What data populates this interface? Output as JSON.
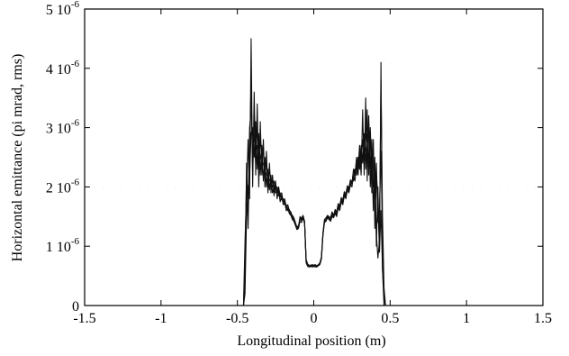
{
  "chart_data": {
    "type": "line",
    "xlabel": "Longitudinal position (m)",
    "ylabel": "Horizontal emittance (pi mrad, rms)",
    "xlim": [
      -1.5,
      1.5
    ],
    "ylim": [
      0,
      5e-06
    ],
    "grid": false,
    "legend": "none",
    "x_ticks": [
      {
        "value": -1.5,
        "label": "-1.5"
      },
      {
        "value": -1,
        "label": "-1"
      },
      {
        "value": -0.5,
        "label": "-0.5"
      },
      {
        "value": 0,
        "label": "0"
      },
      {
        "value": 0.5,
        "label": "0.5"
      },
      {
        "value": 1,
        "label": "1"
      },
      {
        "value": 1.5,
        "label": "1.5"
      }
    ],
    "y_ticks": [
      {
        "value": 0,
        "mantissa": "0",
        "exponent": ""
      },
      {
        "value": 1e-06,
        "mantissa": "1 10",
        "exponent": "-6"
      },
      {
        "value": 2e-06,
        "mantissa": "2 10",
        "exponent": "-6"
      },
      {
        "value": 3e-06,
        "mantissa": "3 10",
        "exponent": "-6"
      },
      {
        "value": 4e-06,
        "mantissa": "4 10",
        "exponent": "-6"
      },
      {
        "value": 5e-06,
        "mantissa": "5 10",
        "exponent": "-6"
      }
    ],
    "x": [
      -0.46,
      -0.45,
      -0.44,
      -0.43,
      -0.42,
      -0.41,
      -0.4,
      -0.39,
      -0.38,
      -0.37,
      -0.36,
      -0.35,
      -0.34,
      -0.33,
      -0.32,
      -0.31,
      -0.3,
      -0.29,
      -0.28,
      -0.27,
      -0.26,
      -0.25,
      -0.24,
      -0.23,
      -0.22,
      -0.21,
      -0.2,
      -0.19,
      -0.18,
      -0.17,
      -0.16,
      -0.15,
      -0.14,
      -0.13,
      -0.12,
      -0.11,
      -0.1,
      -0.09,
      -0.08,
      -0.07,
      -0.06,
      -0.05,
      -0.04,
      -0.03,
      -0.02,
      -0.01,
      0.0,
      0.01,
      0.02,
      0.03,
      0.04,
      0.05,
      0.06,
      0.07,
      0.08,
      0.09,
      0.1,
      0.11,
      0.12,
      0.13,
      0.14,
      0.15,
      0.16,
      0.17,
      0.18,
      0.19,
      0.2,
      0.21,
      0.22,
      0.23,
      0.24,
      0.25,
      0.26,
      0.27,
      0.28,
      0.29,
      0.3,
      0.31,
      0.32,
      0.33,
      0.34,
      0.35,
      0.36,
      0.37,
      0.38,
      0.39,
      0.4,
      0.41,
      0.42,
      0.43,
      0.44,
      0.45,
      0.46,
      0.47,
      0.48
    ],
    "series": [
      {
        "values": [
          0,
          4e-07,
          2.4e-06,
          1.3e-06,
          2.6e-06,
          3.8e-06,
          2.2e-06,
          3.2e-06,
          2.6e-06,
          3e-06,
          2.4e-06,
          2.8e-06,
          2.5e-06,
          2.6e-06,
          2.2e-06,
          2.4e-06,
          2.1e-06,
          2.3e-06,
          2e-06,
          2.1e-06,
          2e-06,
          2.05e-06,
          1.9e-06,
          2e-06,
          1.85e-06,
          1.9e-06,
          1.75e-06,
          1.8e-06,
          1.65e-06,
          1.7e-06,
          1.6e-06,
          1.58e-06,
          1.5e-06,
          1.45e-06,
          1.38e-06,
          1.3e-06,
          1.32e-06,
          1.5e-06,
          1.45e-06,
          1.5e-06,
          1.4e-06,
          7.5e-07,
          6.8e-07,
          6.6e-07,
          6.7e-07,
          6.8e-07,
          6.7e-07,
          6.8e-07,
          6.6e-07,
          6.8e-07,
          7e-07,
          8e-07,
          1.2e-06,
          1.42e-06,
          1.45e-06,
          1.5e-06,
          1.48e-06,
          1.45e-06,
          1.55e-06,
          1.5e-06,
          1.6e-06,
          1.55e-06,
          1.7e-06,
          1.65e-06,
          1.8e-06,
          1.75e-06,
          1.9e-06,
          1.85e-06,
          2e-06,
          1.95e-06,
          2.1e-06,
          2.05e-06,
          2.3e-06,
          2.2e-06,
          2.5e-06,
          2.3e-06,
          2.7e-06,
          2.4e-06,
          2.8e-06,
          2.5e-06,
          3e-06,
          2.4e-06,
          3.1e-06,
          2.3e-06,
          2.8e-06,
          2e-06,
          2.2e-06,
          1.2e-06,
          8e-07,
          1.1e-06,
          3.8e-06,
          1.5e-06,
          3e-07,
          0,
          0
        ]
      },
      {
        "values": [
          0,
          1.1e-06,
          1.9e-06,
          2.8e-06,
          1.8e-06,
          4.5e-06,
          2e-06,
          3.6e-06,
          2.2e-06,
          3.4e-06,
          2e-06,
          3.1e-06,
          2.2e-06,
          2.8e-06,
          2e-06,
          2.6e-06,
          1.9e-06,
          2.4e-06,
          1.9e-06,
          2.2e-06,
          1.85e-06,
          2.1e-06,
          1.8e-06,
          1.95e-06,
          1.75e-06,
          1.85e-06,
          1.7e-06,
          1.75e-06,
          1.6e-06,
          1.65e-06,
          1.55e-06,
          1.52e-06,
          1.45e-06,
          1.42e-06,
          1.35e-06,
          1.28e-06,
          1.3e-06,
          1.42e-06,
          1.4e-06,
          1.48e-06,
          1.38e-06,
          7.2e-07,
          6.6e-07,
          6.5e-07,
          6.6e-07,
          6.5e-07,
          6.6e-07,
          6.5e-07,
          6.5e-07,
          6.7e-07,
          6.9e-07,
          7.8e-07,
          1.18e-06,
          1.4e-06,
          1.42e-06,
          1.48e-06,
          1.45e-06,
          1.42e-06,
          1.5e-06,
          1.48e-06,
          1.55e-06,
          1.5e-06,
          1.65e-06,
          1.6e-06,
          1.75e-06,
          1.7e-06,
          1.85e-06,
          1.8e-06,
          1.95e-06,
          1.9e-06,
          2.05e-06,
          2e-06,
          2.2e-06,
          2.1e-06,
          2.4e-06,
          2.2e-06,
          2.6e-06,
          2.2e-06,
          3.3e-06,
          2.2e-06,
          3.5e-06,
          2.1e-06,
          3.2e-06,
          2e-06,
          2.6e-06,
          1.6e-06,
          2.5e-06,
          1e-06,
          2e-06,
          9e-07,
          4.1e-06,
          6e-07,
          2e-07,
          0,
          0
        ]
      },
      {
        "values": [
          0,
          8e-07,
          2.2e-06,
          1.6e-06,
          3e-06,
          3.3e-06,
          2.6e-06,
          2.9e-06,
          2.4e-06,
          2.7e-06,
          2.7e-06,
          2.5e-06,
          2.4e-06,
          2.4e-06,
          2.3e-06,
          2.2e-06,
          2.2e-06,
          2.1e-06,
          2.1e-06,
          2e-06,
          2.1e-06,
          1.95e-06,
          2e-06,
          1.9e-06,
          1.9e-06,
          1.8e-06,
          1.8e-06,
          1.72e-06,
          1.7e-06,
          1.62e-06,
          1.62e-06,
          1.55e-06,
          1.52e-06,
          1.48e-06,
          1.4e-06,
          1.32e-06,
          1.35e-06,
          1.45e-06,
          1.48e-06,
          1.52e-06,
          1.42e-06,
          7.8e-07,
          7e-07,
          6.8e-07,
          6.8e-07,
          6.9e-07,
          6.8e-07,
          6.9e-07,
          6.7e-07,
          6.9e-07,
          7.2e-07,
          8.2e-07,
          1.22e-06,
          1.45e-06,
          1.48e-06,
          1.52e-06,
          1.5e-06,
          1.48e-06,
          1.58e-06,
          1.52e-06,
          1.62e-06,
          1.58e-06,
          1.72e-06,
          1.68e-06,
          1.82e-06,
          1.78e-06,
          1.92e-06,
          1.88e-06,
          2.02e-06,
          1.98e-06,
          2.12e-06,
          2.08e-06,
          2.25e-06,
          2.3e-06,
          2.3e-06,
          2.5e-06,
          2.4e-06,
          2.6e-06,
          2.5e-06,
          2.7e-06,
          2.6e-06,
          2.9e-06,
          2.4e-06,
          3e-06,
          2.2e-06,
          2.6e-06,
          1.8e-06,
          2.4e-06,
          1.4e-06,
          1.6e-06,
          2.6e-06,
          1.2e-06,
          1e-07,
          0,
          0
        ]
      },
      {
        "values": [
          0,
          2e-07,
          1.5e-06,
          2e-06,
          2.2e-06,
          2.9e-06,
          3e-06,
          2.5e-06,
          3.1e-06,
          2.3e-06,
          2.9e-06,
          2.2e-06,
          2.7e-06,
          2.1e-06,
          2.5e-06,
          2e-06,
          2.3e-06,
          1.95e-06,
          2.2e-06,
          1.9e-06,
          2e-06,
          1.9e-06,
          1.95e-06,
          1.85e-06,
          1.85e-06,
          1.78e-06,
          1.78e-06,
          1.7e-06,
          1.68e-06,
          1.6e-06,
          1.58e-06,
          1.53e-06,
          1.48e-06,
          1.44e-06,
          1.36e-06,
          1.29e-06,
          1.33e-06,
          1.47e-06,
          1.43e-06,
          1.49e-06,
          1.39e-06,
          7.4e-07,
          6.7e-07,
          6.6e-07,
          6.6e-07,
          6.7e-07,
          6.6e-07,
          6.7e-07,
          6.6e-07,
          6.8e-07,
          7e-07,
          7.9e-07,
          1.19e-06,
          1.41e-06,
          1.44e-06,
          1.49e-06,
          1.47e-06,
          1.43e-06,
          1.52e-06,
          1.49e-06,
          1.57e-06,
          1.52e-06,
          1.67e-06,
          1.62e-06,
          1.77e-06,
          1.72e-06,
          1.87e-06,
          1.82e-06,
          1.97e-06,
          1.92e-06,
          2.02e-06,
          2.1e-06,
          2.1e-06,
          2.3e-06,
          2.2e-06,
          2.5e-06,
          2.3e-06,
          2.7e-06,
          2.4e-06,
          2.9e-06,
          2.3e-06,
          3.3e-06,
          2.2e-06,
          2.9e-06,
          1.9e-06,
          2.8e-06,
          1.3e-06,
          2.2e-06,
          1.8e-06,
          9e-07,
          1.6e-06,
          6e-07,
          0,
          0,
          0
        ]
      }
    ]
  }
}
